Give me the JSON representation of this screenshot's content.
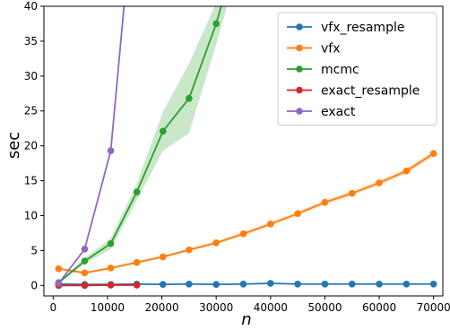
{
  "chart_data": {
    "type": "line",
    "xlabel": "n",
    "ylabel": "sec",
    "xlim": [
      -1700,
      71700
    ],
    "ylim": [
      -1.5,
      40
    ],
    "xticks": [
      0,
      10000,
      20000,
      30000,
      40000,
      50000,
      60000,
      70000
    ],
    "yticks": [
      0,
      5,
      10,
      15,
      20,
      25,
      30,
      35,
      40
    ],
    "grid": false,
    "legend_position": "top-right",
    "series": [
      {
        "name": "vfx_resample",
        "color": "#1f77b4",
        "x": [
          1000,
          5800,
          10600,
          15400,
          20200,
          25000,
          30000,
          35000,
          40000,
          45000,
          50000,
          55000,
          60000,
          65000,
          70000
        ],
        "y": [
          0.2,
          0.15,
          0.15,
          0.2,
          0.15,
          0.2,
          0.15,
          0.2,
          0.3,
          0.2,
          0.2,
          0.2,
          0.2,
          0.2,
          0.2
        ],
        "band": [
          0.05,
          0.05,
          0.05,
          0.05,
          0.05,
          0.05,
          0.05,
          0.05,
          0.05,
          0.05,
          0.05,
          0.05,
          0.05,
          0.05,
          0.05
        ]
      },
      {
        "name": "vfx",
        "color": "#ff7f0e",
        "x": [
          1000,
          5800,
          10600,
          15400,
          20200,
          25000,
          30000,
          35000,
          40000,
          45000,
          50000,
          55000,
          60000,
          65000,
          70000
        ],
        "y": [
          2.4,
          1.8,
          2.5,
          3.3,
          4.1,
          5.1,
          6.1,
          7.4,
          8.8,
          10.3,
          11.9,
          13.2,
          14.7,
          16.4,
          18.9
        ],
        "band": [
          0.15,
          0.15,
          0.2,
          0.2,
          0.2,
          0.2,
          0.25,
          0.25,
          0.3,
          0.3,
          0.35,
          0.35,
          0.35,
          0.4,
          0.45
        ]
      },
      {
        "name": "mcmc",
        "color": "#2ca02c",
        "x": [
          1000,
          5800,
          10600,
          15400,
          20200,
          25000,
          30000,
          32000
        ],
        "y": [
          0.4,
          3.5,
          6.0,
          13.4,
          22.1,
          26.8,
          37.5,
          43.0
        ],
        "band": [
          0.2,
          0.4,
          0.8,
          1.2,
          2.8,
          5.0,
          3.0,
          3.0
        ]
      },
      {
        "name": "exact_resample",
        "color": "#d62728",
        "x": [
          1000,
          5800,
          10600,
          15400
        ],
        "y": [
          0.0,
          0.0,
          0.05,
          0.05
        ],
        "band": [
          0.05,
          0.05,
          0.05,
          0.05
        ]
      },
      {
        "name": "exact",
        "color": "#9467bd",
        "x": [
          1000,
          5800,
          10600,
          15400
        ],
        "y": [
          0.3,
          5.2,
          19.3,
          60.0
        ],
        "band": [
          0,
          0,
          0,
          0
        ]
      }
    ]
  }
}
